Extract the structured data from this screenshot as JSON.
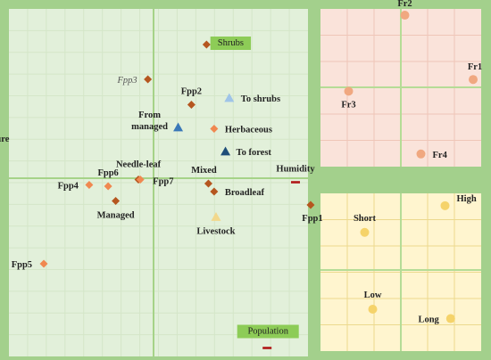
{
  "chart_data": [
    {
      "type": "scatter",
      "panel": "main-biplot",
      "grid": true,
      "variables": [
        {
          "label": "Temperature",
          "x": -0.9,
          "y": 0.18,
          "marker": "dash",
          "color": "#e07060"
        },
        {
          "label": "Humidity",
          "x": 0.75,
          "y": -0.03,
          "marker": "dash",
          "color": "#b01818"
        },
        {
          "label": "Population",
          "x": 0.6,
          "y": -1.27,
          "marker": "dash",
          "color": "#b01818",
          "boxed": true
        }
      ],
      "points": [
        {
          "label": "Shrubs",
          "x": 0.28,
          "y": 1.0,
          "marker": "diamond",
          "color": "#b5561f",
          "boxed": true
        },
        {
          "label": "Fpp3",
          "x": -0.03,
          "y": 0.74,
          "marker": "diamond",
          "color": "#b5561f",
          "italic": true
        },
        {
          "label": "Fpp2",
          "x": 0.2,
          "y": 0.55,
          "marker": "diamond",
          "color": "#b5561f"
        },
        {
          "label": "To shrubs",
          "x": 0.4,
          "y": 0.6,
          "marker": "triangle",
          "color": "#9fc4e8"
        },
        {
          "label": "From managed",
          "x": 0.13,
          "y": 0.38,
          "marker": "triangle",
          "color": "#3a78b8"
        },
        {
          "label": "Herbaceous",
          "x": 0.32,
          "y": 0.37,
          "marker": "diamond",
          "color": "#f08850"
        },
        {
          "label": "To forest",
          "x": 0.38,
          "y": 0.2,
          "marker": "triangle",
          "color": "#1f4e79"
        },
        {
          "label": "Needle-leaf",
          "x": -0.08,
          "y": -0.01,
          "marker": "diamond",
          "color": "#b5561f"
        },
        {
          "label": "Fpp7",
          "x": -0.07,
          "y": -0.01,
          "marker": "diamond",
          "color": "#f08850"
        },
        {
          "label": "Mixed",
          "x": 0.29,
          "y": -0.04,
          "marker": "diamond",
          "color": "#b5561f"
        },
        {
          "label": "Broadleaf",
          "x": 0.32,
          "y": -0.1,
          "marker": "diamond",
          "color": "#b5561f"
        },
        {
          "label": "Fpp6",
          "x": -0.24,
          "y": -0.06,
          "marker": "diamond",
          "color": "#f08850"
        },
        {
          "label": "Fpp4",
          "x": -0.34,
          "y": -0.05,
          "marker": "diamond",
          "color": "#f08850"
        },
        {
          "label": "Managed",
          "x": -0.2,
          "y": -0.17,
          "marker": "diamond",
          "color": "#b5561f"
        },
        {
          "label": "Fpp1",
          "x": 0.83,
          "y": -0.2,
          "marker": "diamond",
          "color": "#b5561f"
        },
        {
          "label": "Livestock",
          "x": 0.33,
          "y": -0.29,
          "marker": "triangle",
          "color": "#f2d88c"
        },
        {
          "label": "Fpp5",
          "x": -0.58,
          "y": -0.64,
          "marker": "diamond",
          "color": "#f08850"
        }
      ]
    },
    {
      "type": "scatter",
      "panel": "inset-top-right",
      "grid": true,
      "points": [
        {
          "label": "Fr2",
          "x": 0.05,
          "y": 0.92,
          "marker": "circle",
          "color": "#f0a880"
        },
        {
          "label": "Fr1",
          "x": 0.9,
          "y": 0.1,
          "marker": "circle",
          "color": "#f0a880"
        },
        {
          "label": "Fr3",
          "x": -0.65,
          "y": -0.05,
          "marker": "circle",
          "color": "#f0a880"
        },
        {
          "label": "Fr4",
          "x": 0.25,
          "y": -0.85,
          "marker": "circle",
          "color": "#f0a880"
        }
      ]
    },
    {
      "type": "scatter",
      "panel": "inset-bottom-right",
      "grid": true,
      "points": [
        {
          "label": "Short",
          "x": -0.45,
          "y": 0.48,
          "marker": "circle",
          "color": "#f5d36a"
        },
        {
          "label": "High",
          "x": 0.55,
          "y": 0.82,
          "marker": "circle",
          "color": "#f5d36a"
        },
        {
          "label": "Low",
          "x": -0.35,
          "y": -0.5,
          "marker": "circle",
          "color": "#f5d36a"
        },
        {
          "label": "Long",
          "x": 0.62,
          "y": -0.62,
          "marker": "circle",
          "color": "#f5d36a"
        }
      ]
    }
  ]
}
